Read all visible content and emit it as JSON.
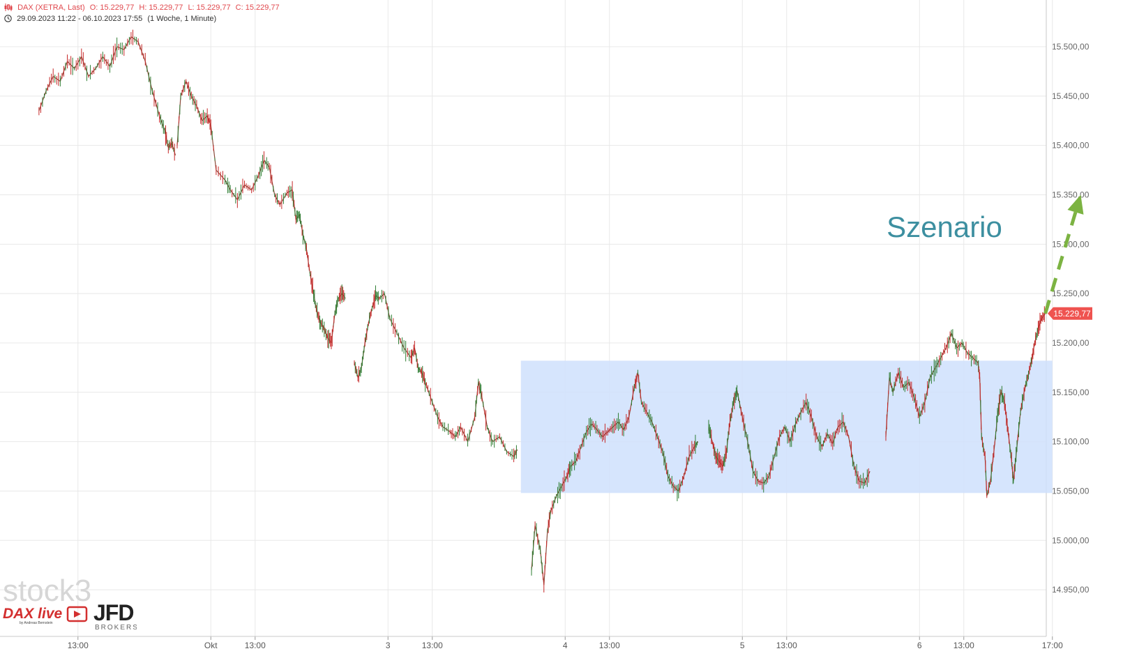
{
  "header": {
    "symbol": "DAX (XETRA, Last)",
    "open": "O: 15.229,77",
    "high": "H: 15.229,77",
    "low": "L: 15.229,77",
    "close": "C: 15.229,77",
    "range": "29.09.2023 11:22 - 06.10.2023 17:55",
    "interval": "(1 Woche, 1 Minute)"
  },
  "colors": {
    "up": "#2e7d32",
    "down": "#c62828",
    "line": "#8a4a3a",
    "range_box": "#cfe0fd",
    "arrow": "#7cb342",
    "annotation": "#3d8fa0",
    "price_tag": "#ef5350",
    "grid": "#e8e8e8"
  },
  "chart_data": {
    "type": "line",
    "title": "DAX (XETRA, Last)",
    "ylim": [
      14925,
      15540
    ],
    "y_ticks": [
      "15.500,00",
      "15.450,00",
      "15.400,00",
      "15.350,00",
      "15.300,00",
      "15.250,00",
      "15.200,00",
      "15.150,00",
      "15.100,00",
      "15.050,00",
      "15.000,00",
      "14.950,00"
    ],
    "y_tick_values": [
      15500,
      15450,
      15400,
      15350,
      15300,
      15250,
      15200,
      15150,
      15100,
      15050,
      15000,
      14950
    ],
    "x_ticks": [
      "13:00",
      "Okt",
      "13:00",
      "3",
      "13:00",
      "4",
      "13:00",
      "5",
      "13:00",
      "6",
      "13:00",
      "17:00"
    ],
    "x_tick_values": [
      0.22,
      0.97,
      1.22,
      1.97,
      2.22,
      2.97,
      3.22,
      3.97,
      4.22,
      4.97,
      5.22,
      5.72
    ],
    "last_price": 15229.77,
    "last_price_label": "15.229,77",
    "sessions": [
      {
        "name": "29.09.",
        "start": 0.0,
        "end": 0.77,
        "points": [
          [
            0.0,
            15435
          ],
          [
            0.04,
            15455
          ],
          [
            0.08,
            15470
          ],
          [
            0.12,
            15465
          ],
          [
            0.16,
            15485
          ],
          [
            0.2,
            15478
          ],
          [
            0.24,
            15490
          ],
          [
            0.28,
            15470
          ],
          [
            0.32,
            15478
          ],
          [
            0.36,
            15490
          ],
          [
            0.4,
            15480
          ],
          [
            0.44,
            15500
          ],
          [
            0.48,
            15497
          ],
          [
            0.52,
            15510
          ],
          [
            0.56,
            15505
          ],
          [
            0.6,
            15485
          ],
          [
            0.64,
            15455
          ],
          [
            0.68,
            15430
          ],
          [
            0.71,
            15415
          ],
          [
            0.73,
            15398
          ],
          [
            0.75,
            15402
          ],
          [
            0.77,
            15390
          ]
        ]
      },
      {
        "name": "02.10.",
        "start": 0.77,
        "end": 1.77,
        "points": [
          [
            0.78,
            15400
          ],
          [
            0.8,
            15450
          ],
          [
            0.83,
            15465
          ],
          [
            0.86,
            15450
          ],
          [
            0.89,
            15440
          ],
          [
            0.92,
            15425
          ],
          [
            0.95,
            15430
          ],
          [
            0.97,
            15420
          ],
          [
            1.0,
            15375
          ],
          [
            1.05,
            15365
          ],
          [
            1.08,
            15355
          ],
          [
            1.12,
            15345
          ],
          [
            1.16,
            15360
          ],
          [
            1.2,
            15355
          ],
          [
            1.24,
            15370
          ],
          [
            1.27,
            15385
          ],
          [
            1.3,
            15378
          ],
          [
            1.33,
            15350
          ],
          [
            1.36,
            15340
          ],
          [
            1.4,
            15352
          ],
          [
            1.43,
            15355
          ],
          [
            1.45,
            15325
          ],
          [
            1.47,
            15330
          ],
          [
            1.49,
            15310
          ],
          [
            1.51,
            15295
          ],
          [
            1.53,
            15270
          ],
          [
            1.55,
            15250
          ],
          [
            1.57,
            15230
          ],
          [
            1.59,
            15220
          ],
          [
            1.61,
            15215
          ],
          [
            1.63,
            15205
          ],
          [
            1.65,
            15200
          ],
          [
            1.67,
            15230
          ],
          [
            1.69,
            15245
          ],
          [
            1.71,
            15250
          ],
          [
            1.73,
            15245
          ]
        ]
      },
      {
        "name": "03.10.",
        "start": 1.77,
        "end": 2.77,
        "points": [
          [
            1.78,
            15180
          ],
          [
            1.8,
            15165
          ],
          [
            1.82,
            15175
          ],
          [
            1.84,
            15200
          ],
          [
            1.86,
            15220
          ],
          [
            1.88,
            15235
          ],
          [
            1.9,
            15248
          ],
          [
            1.92,
            15245
          ],
          [
            1.95,
            15250
          ],
          [
            1.98,
            15225
          ],
          [
            2.02,
            15210
          ],
          [
            2.06,
            15195
          ],
          [
            2.1,
            15185
          ],
          [
            2.12,
            15195
          ],
          [
            2.14,
            15175
          ],
          [
            2.16,
            15170
          ],
          [
            2.18,
            15160
          ],
          [
            2.21,
            15145
          ],
          [
            2.25,
            15125
          ],
          [
            2.28,
            15115
          ],
          [
            2.32,
            15110
          ],
          [
            2.35,
            15105
          ],
          [
            2.38,
            15115
          ],
          [
            2.42,
            15100
          ],
          [
            2.46,
            15125
          ],
          [
            2.48,
            15160
          ],
          [
            2.5,
            15145
          ],
          [
            2.53,
            15115
          ],
          [
            2.56,
            15100
          ],
          [
            2.6,
            15105
          ],
          [
            2.64,
            15090
          ],
          [
            2.68,
            15085
          ],
          [
            2.7,
            15092
          ]
        ]
      },
      {
        "name": "04.10.",
        "start": 2.77,
        "end": 3.77,
        "points": [
          [
            2.78,
            14970
          ],
          [
            2.8,
            15015
          ],
          [
            2.83,
            14990
          ],
          [
            2.85,
            14955
          ],
          [
            2.87,
            15010
          ],
          [
            2.89,
            15030
          ],
          [
            2.92,
            15045
          ],
          [
            2.95,
            15055
          ],
          [
            2.98,
            15065
          ],
          [
            3.0,
            15075
          ],
          [
            3.03,
            15080
          ],
          [
            3.06,
            15095
          ],
          [
            3.09,
            15110
          ],
          [
            3.12,
            15118
          ],
          [
            3.15,
            15112
          ],
          [
            3.18,
            15105
          ],
          [
            3.21,
            15110
          ],
          [
            3.24,
            15115
          ],
          [
            3.27,
            15120
          ],
          [
            3.3,
            15112
          ],
          [
            3.33,
            15125
          ],
          [
            3.36,
            15155
          ],
          [
            3.38,
            15170
          ],
          [
            3.4,
            15140
          ],
          [
            3.43,
            15130
          ],
          [
            3.46,
            15120
          ],
          [
            3.49,
            15105
          ],
          [
            3.52,
            15090
          ],
          [
            3.55,
            15065
          ],
          [
            3.58,
            15055
          ],
          [
            3.61,
            15050
          ],
          [
            3.64,
            15065
          ],
          [
            3.67,
            15085
          ],
          [
            3.7,
            15095
          ],
          [
            3.72,
            15100
          ]
        ]
      },
      {
        "name": "05.10.",
        "start": 3.77,
        "end": 4.77,
        "points": [
          [
            3.78,
            15115
          ],
          [
            3.8,
            15100
          ],
          [
            3.82,
            15085
          ],
          [
            3.84,
            15080
          ],
          [
            3.86,
            15075
          ],
          [
            3.88,
            15090
          ],
          [
            3.9,
            15120
          ],
          [
            3.92,
            15140
          ],
          [
            3.94,
            15152
          ],
          [
            3.97,
            15125
          ],
          [
            4.0,
            15100
          ],
          [
            4.03,
            15070
          ],
          [
            4.06,
            15060
          ],
          [
            4.09,
            15058
          ],
          [
            4.12,
            15065
          ],
          [
            4.15,
            15085
          ],
          [
            4.18,
            15105
          ],
          [
            4.21,
            15115
          ],
          [
            4.24,
            15100
          ],
          [
            4.27,
            15118
          ],
          [
            4.3,
            15130
          ],
          [
            4.33,
            15140
          ],
          [
            4.36,
            15125
          ],
          [
            4.39,
            15105
          ],
          [
            4.42,
            15095
          ],
          [
            4.45,
            15108
          ],
          [
            4.48,
            15098
          ],
          [
            4.51,
            15115
          ],
          [
            4.54,
            15120
          ],
          [
            4.57,
            15105
          ],
          [
            4.6,
            15075
          ],
          [
            4.63,
            15060
          ],
          [
            4.66,
            15058
          ],
          [
            4.69,
            15070
          ]
        ]
      },
      {
        "name": "06.10.",
        "start": 4.77,
        "end": 5.77,
        "points": [
          [
            4.78,
            15105
          ],
          [
            4.8,
            15165
          ],
          [
            4.82,
            15150
          ],
          [
            4.85,
            15170
          ],
          [
            4.88,
            15155
          ],
          [
            4.91,
            15160
          ],
          [
            4.94,
            15145
          ],
          [
            4.97,
            15125
          ],
          [
            5.0,
            15140
          ],
          [
            5.03,
            15165
          ],
          [
            5.06,
            15175
          ],
          [
            5.09,
            15185
          ],
          [
            5.12,
            15195
          ],
          [
            5.15,
            15210
          ],
          [
            5.18,
            15195
          ],
          [
            5.21,
            15200
          ],
          [
            5.24,
            15190
          ],
          [
            5.27,
            15185
          ],
          [
            5.3,
            15180
          ],
          [
            5.31,
            15165
          ],
          [
            5.32,
            15105
          ],
          [
            5.34,
            15085
          ],
          [
            5.35,
            15045
          ],
          [
            5.37,
            15060
          ],
          [
            5.39,
            15090
          ],
          [
            5.41,
            15125
          ],
          [
            5.43,
            15150
          ],
          [
            5.45,
            15140
          ],
          [
            5.47,
            15110
          ],
          [
            5.49,
            15080
          ],
          [
            5.5,
            15060
          ],
          [
            5.52,
            15095
          ],
          [
            5.54,
            15130
          ],
          [
            5.56,
            15150
          ],
          [
            5.58,
            15165
          ],
          [
            5.6,
            15180
          ],
          [
            5.62,
            15200
          ],
          [
            5.64,
            15215
          ],
          [
            5.66,
            15225
          ],
          [
            5.68,
            15229.77
          ]
        ]
      }
    ],
    "range_box": {
      "x0": 2.72,
      "x1": 5.72,
      "y0": 15048,
      "y1": 15182
    },
    "scenario_arrow": {
      "x0": 5.68,
      "y0": 15229.77,
      "x1": 5.88,
      "y1": 15350
    },
    "annotation": "Szenario"
  },
  "branding": {
    "stock3": "stock3",
    "dax_live": "DAX live",
    "dax_live_sub": "by Andreas Bernstein",
    "jfd": "JFD",
    "jfd_sub": "BROKERS"
  }
}
